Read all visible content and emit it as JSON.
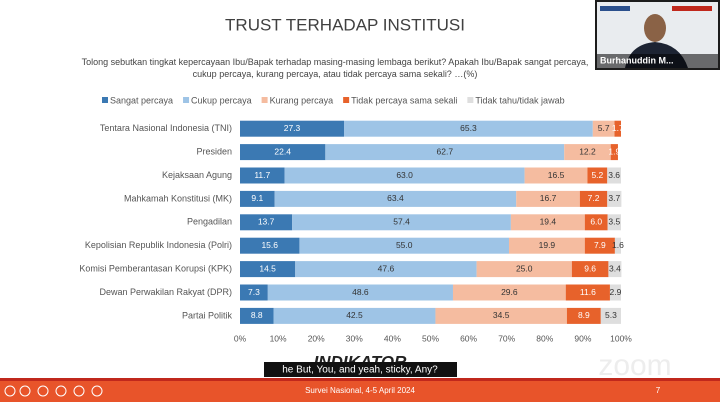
{
  "chart_data": {
    "type": "stacked-bar-horizontal",
    "title": "TRUST TERHADAP INSTITUSI",
    "subtitle": "Tolong sebutkan tingkat kepercayaan Ibu/Bapak terhadap masing-masing lembaga berikut? Apakah Ibu/Bapak sangat percaya, cukup percaya, kurang percaya, atau tidak percaya sama sekali? …(%)",
    "categories": [
      "Tentara Nasional Indonesia (TNI)",
      "Presiden",
      "Kejaksaan Agung",
      "Mahkamah Konstitusi (MK)",
      "Pengadilan",
      "Kepolisian Republik Indonesia (Polri)",
      "Komisi Pemberantasan Korupsi (KPK)",
      "Dewan Perwakilan Rakyat (DPR)",
      "Partai Politik"
    ],
    "series": [
      {
        "name": "Sangat percaya",
        "color": "#3b79b3",
        "values": [
          27.3,
          22.4,
          11.7,
          9.1,
          13.7,
          15.6,
          14.5,
          7.3,
          8.8
        ]
      },
      {
        "name": "Cukup percaya",
        "color": "#9ec4e6",
        "values": [
          65.3,
          62.7,
          63.0,
          63.4,
          57.4,
          55.0,
          47.6,
          48.6,
          42.5
        ],
        "value_labels": [
          "65.3",
          "62.7",
          "63.0",
          "63.4",
          "57.4",
          "55.0",
          "47.6",
          "48.6",
          "42.5"
        ]
      },
      {
        "name": "Kurang percaya",
        "color": "#f5bca0",
        "values": [
          5.7,
          12.2,
          16.5,
          16.7,
          19.4,
          19.9,
          25.0,
          29.6,
          34.5
        ],
        "value_labels": [
          "5.7",
          "12.2",
          "16.5",
          "16.7",
          "19.4",
          "19.9",
          "25.0",
          "29.6",
          "34.5"
        ]
      },
      {
        "name": "Tidak percaya sama sekali",
        "color": "#e7622b",
        "values": [
          1.7,
          1.9,
          5.2,
          7.2,
          6.0,
          7.9,
          9.6,
          11.6,
          8.9
        ],
        "value_labels": [
          "1.7",
          "1.9",
          "5.2",
          "7.2",
          "6.0",
          "7.9",
          "9.6",
          "11.6",
          "8.9"
        ]
      },
      {
        "name": "Tidak tahu/tidak jawab",
        "color": "#dedede",
        "values": [
          null,
          null,
          3.6,
          3.7,
          3.5,
          1.6,
          3.4,
          2.9,
          5.3
        ]
      }
    ],
    "xlim": [
      0,
      100
    ],
    "xticks": [
      {
        "value": 0,
        "label": "0%"
      },
      {
        "value": 10,
        "label": "10%"
      },
      {
        "value": 20,
        "label": "20%"
      },
      {
        "value": 30,
        "label": "30%"
      },
      {
        "value": 40,
        "label": "40%"
      },
      {
        "value": 50,
        "label": "50%"
      },
      {
        "value": 60,
        "label": "60%"
      },
      {
        "value": 70,
        "label": "70%"
      },
      {
        "value": 80,
        "label": "80%"
      },
      {
        "value": 90,
        "label": "90%"
      },
      {
        "value": 100,
        "label": "100%"
      }
    ],
    "legend": "top"
  },
  "slide": {
    "logo": "INDIKATOR",
    "footer": "Survei Nasional, 4-5 April 2024",
    "page_number": "7"
  },
  "meeting": {
    "participant": "Burhanuddin M...",
    "caption": "he But, You, and yeah, sticky, Any?",
    "watermark": "zoom"
  }
}
